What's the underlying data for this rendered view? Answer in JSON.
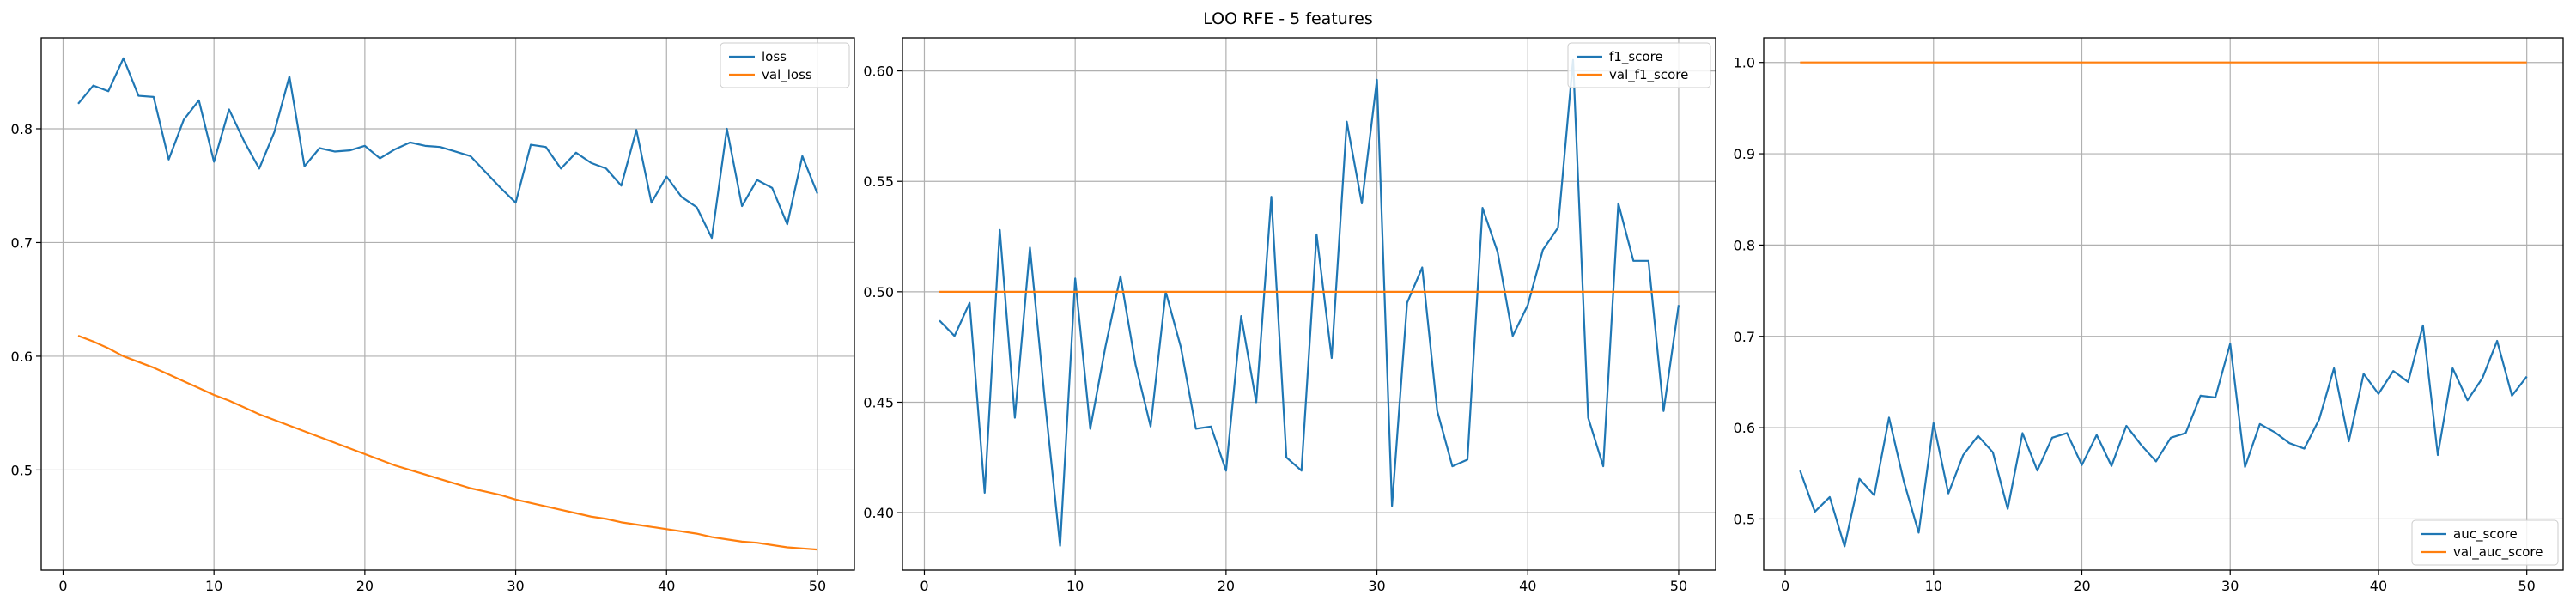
{
  "figure": {
    "title": "LOO RFE - 5 features"
  },
  "colors": {
    "series1": "#1f77b4",
    "series2": "#ff7f0e",
    "grid": "#b0b0b0",
    "axis": "#000000"
  },
  "chart_data": [
    {
      "type": "line",
      "title": "",
      "xlabel": "",
      "ylabel": "",
      "xlim": [
        -1.45,
        52.45
      ],
      "ylim": [
        0.412,
        0.88
      ],
      "xticks": [
        0,
        10,
        20,
        30,
        40,
        50
      ],
      "xtick_labels": [
        "0",
        "10",
        "20",
        "30",
        "40",
        "50"
      ],
      "yticks": [
        0.5,
        0.6,
        0.7,
        0.8
      ],
      "ytick_labels": [
        "0.5",
        "0.6",
        "0.7",
        "0.8"
      ],
      "grid": true,
      "legend_position": "top-right",
      "x": [
        1,
        2,
        3,
        4,
        5,
        6,
        7,
        8,
        9,
        10,
        11,
        12,
        13,
        14,
        15,
        16,
        17,
        18,
        19,
        20,
        21,
        22,
        23,
        24,
        25,
        26,
        27,
        28,
        29,
        30,
        31,
        32,
        33,
        34,
        35,
        36,
        37,
        38,
        39,
        40,
        41,
        42,
        43,
        44,
        45,
        46,
        47,
        48,
        49,
        50
      ],
      "series": [
        {
          "name": "loss",
          "values": [
            0.822,
            0.838,
            0.833,
            0.862,
            0.829,
            0.828,
            0.773,
            0.808,
            0.825,
            0.771,
            0.817,
            0.789,
            0.765,
            0.797,
            0.846,
            0.767,
            0.783,
            0.78,
            0.781,
            0.785,
            0.774,
            0.782,
            0.788,
            0.785,
            0.784,
            0.78,
            0.776,
            0.762,
            0.748,
            0.735,
            0.786,
            0.784,
            0.765,
            0.779,
            0.77,
            0.765,
            0.75,
            0.799,
            0.735,
            0.758,
            0.74,
            0.731,
            0.704,
            0.8,
            0.732,
            0.755,
            0.748,
            0.716,
            0.776,
            0.743
          ]
        },
        {
          "name": "val_loss",
          "values": [
            0.618,
            0.613,
            0.607,
            0.6,
            0.595,
            0.59,
            0.584,
            0.578,
            0.572,
            0.566,
            0.561,
            0.555,
            0.549,
            0.544,
            0.539,
            0.534,
            0.529,
            0.524,
            0.519,
            0.514,
            0.509,
            0.504,
            0.5,
            0.496,
            0.492,
            0.488,
            0.484,
            0.481,
            0.478,
            0.474,
            0.471,
            0.468,
            0.465,
            0.462,
            0.459,
            0.457,
            0.454,
            0.452,
            0.45,
            0.448,
            0.446,
            0.444,
            0.441,
            0.439,
            0.437,
            0.436,
            0.434,
            0.432,
            0.431,
            0.43
          ]
        }
      ]
    },
    {
      "type": "line",
      "title": "",
      "xlabel": "",
      "ylabel": "",
      "xlim": [
        -1.45,
        52.45
      ],
      "ylim": [
        0.374,
        0.615
      ],
      "xticks": [
        0,
        10,
        20,
        30,
        40,
        50
      ],
      "xtick_labels": [
        "0",
        "10",
        "20",
        "30",
        "40",
        "50"
      ],
      "yticks": [
        0.4,
        0.45,
        0.5,
        0.55,
        0.6
      ],
      "ytick_labels": [
        "0.40",
        "0.45",
        "0.50",
        "0.55",
        "0.60"
      ],
      "grid": true,
      "legend_position": "top-right",
      "x": [
        1,
        2,
        3,
        4,
        5,
        6,
        7,
        8,
        9,
        10,
        11,
        12,
        13,
        14,
        15,
        16,
        17,
        18,
        19,
        20,
        21,
        22,
        23,
        24,
        25,
        26,
        27,
        28,
        29,
        30,
        31,
        32,
        33,
        34,
        35,
        36,
        37,
        38,
        39,
        40,
        41,
        42,
        43,
        44,
        45,
        46,
        47,
        48,
        49,
        50
      ],
      "series": [
        {
          "name": "f1_score",
          "values": [
            0.487,
            0.48,
            0.495,
            0.409,
            0.528,
            0.443,
            0.52,
            0.45,
            0.385,
            0.506,
            0.438,
            0.475,
            0.507,
            0.467,
            0.439,
            0.5,
            0.475,
            0.438,
            0.439,
            0.419,
            0.489,
            0.45,
            0.543,
            0.425,
            0.419,
            0.526,
            0.47,
            0.577,
            0.54,
            0.596,
            0.403,
            0.495,
            0.511,
            0.446,
            0.421,
            0.424,
            0.538,
            0.518,
            0.48,
            0.494,
            0.519,
            0.529,
            0.605,
            0.443,
            0.421,
            0.54,
            0.514,
            0.514,
            0.446,
            0.494
          ]
        },
        {
          "name": "val_f1_score",
          "values": [
            0.5,
            0.5,
            0.5,
            0.5,
            0.5,
            0.5,
            0.5,
            0.5,
            0.5,
            0.5,
            0.5,
            0.5,
            0.5,
            0.5,
            0.5,
            0.5,
            0.5,
            0.5,
            0.5,
            0.5,
            0.5,
            0.5,
            0.5,
            0.5,
            0.5,
            0.5,
            0.5,
            0.5,
            0.5,
            0.5,
            0.5,
            0.5,
            0.5,
            0.5,
            0.5,
            0.5,
            0.5,
            0.5,
            0.5,
            0.5,
            0.5,
            0.5,
            0.5,
            0.5,
            0.5,
            0.5,
            0.5,
            0.5,
            0.5,
            0.5
          ]
        }
      ]
    },
    {
      "type": "line",
      "title": "",
      "xlabel": "",
      "ylabel": "",
      "xlim": [
        -1.45,
        52.45
      ],
      "ylim": [
        0.444,
        1.027
      ],
      "xticks": [
        0,
        10,
        20,
        30,
        40,
        50
      ],
      "xtick_labels": [
        "0",
        "10",
        "20",
        "30",
        "40",
        "50"
      ],
      "yticks": [
        0.5,
        0.6,
        0.7,
        0.8,
        0.9,
        1.0
      ],
      "ytick_labels": [
        "0.5",
        "0.6",
        "0.7",
        "0.8",
        "0.9",
        "1.0"
      ],
      "grid": true,
      "legend_position": "bottom-right",
      "x": [
        1,
        2,
        3,
        4,
        5,
        6,
        7,
        8,
        9,
        10,
        11,
        12,
        13,
        14,
        15,
        16,
        17,
        18,
        19,
        20,
        21,
        22,
        23,
        24,
        25,
        26,
        27,
        28,
        29,
        30,
        31,
        32,
        33,
        34,
        35,
        36,
        37,
        38,
        39,
        40,
        41,
        42,
        43,
        44,
        45,
        46,
        47,
        48,
        49,
        50
      ],
      "series": [
        {
          "name": "auc_score",
          "values": [
            0.553,
            0.508,
            0.524,
            0.47,
            0.544,
            0.526,
            0.611,
            0.541,
            0.485,
            0.605,
            0.528,
            0.57,
            0.591,
            0.573,
            0.511,
            0.594,
            0.553,
            0.589,
            0.594,
            0.559,
            0.592,
            0.558,
            0.602,
            0.581,
            0.563,
            0.589,
            0.594,
            0.635,
            0.633,
            0.692,
            0.557,
            0.604,
            0.595,
            0.583,
            0.577,
            0.609,
            0.665,
            0.585,
            0.659,
            0.637,
            0.662,
            0.65,
            0.712,
            0.57,
            0.665,
            0.63,
            0.654,
            0.695,
            0.635,
            0.656
          ]
        },
        {
          "name": "val_auc_score",
          "values": [
            1.0,
            1.0,
            1.0,
            1.0,
            1.0,
            1.0,
            1.0,
            1.0,
            1.0,
            1.0,
            1.0,
            1.0,
            1.0,
            1.0,
            1.0,
            1.0,
            1.0,
            1.0,
            1.0,
            1.0,
            1.0,
            1.0,
            1.0,
            1.0,
            1.0,
            1.0,
            1.0,
            1.0,
            1.0,
            1.0,
            1.0,
            1.0,
            1.0,
            1.0,
            1.0,
            1.0,
            1.0,
            1.0,
            1.0,
            1.0,
            1.0,
            1.0,
            1.0,
            1.0,
            1.0,
            1.0,
            1.0,
            1.0,
            1.0,
            1.0
          ]
        }
      ]
    }
  ]
}
